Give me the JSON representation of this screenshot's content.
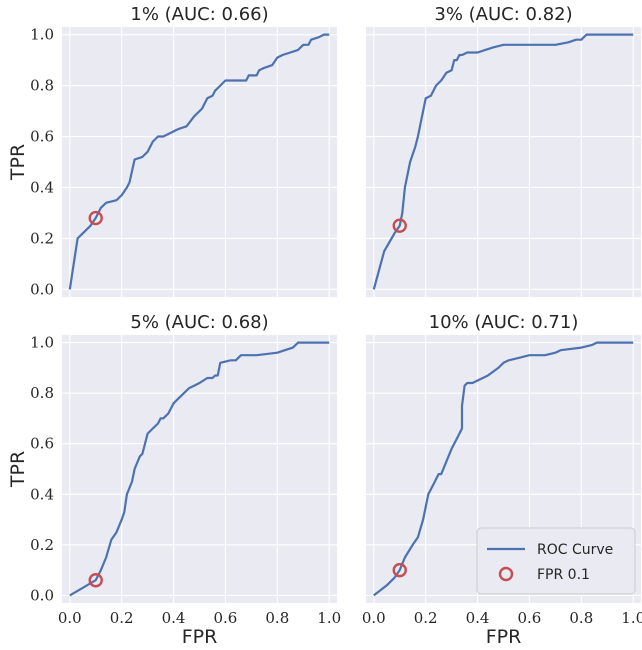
{
  "chart_data": {
    "type": "line",
    "colors": {
      "roc": "#4c72b0",
      "marker": "#c44e52"
    },
    "shared": {
      "xlabel": "FPR",
      "ylabel": "TPR",
      "xlim": [
        -0.03,
        1.03
      ],
      "ylim": [
        -0.03,
        1.03
      ],
      "ticks": [
        "0.0",
        "0.2",
        "0.4",
        "0.6",
        "0.8",
        "1.0"
      ],
      "grid": true,
      "sharex": true,
      "sharey": true
    },
    "legend": {
      "placement": "lower-right",
      "entries": [
        "ROC Curve",
        "FPR 0.1"
      ]
    },
    "panels": [
      {
        "title": "1% (AUC: 0.66)",
        "marker": [
          0.1,
          0.28
        ],
        "x": [
          0.0,
          0.03,
          0.05,
          0.08,
          0.1,
          0.12,
          0.14,
          0.18,
          0.2,
          0.22,
          0.23,
          0.25,
          0.28,
          0.3,
          0.32,
          0.34,
          0.36,
          0.38,
          0.4,
          0.42,
          0.45,
          0.48,
          0.5,
          0.51,
          0.53,
          0.55,
          0.56,
          0.58,
          0.6,
          0.63,
          0.68,
          0.69,
          0.72,
          0.73,
          0.75,
          0.78,
          0.8,
          0.82,
          0.85,
          0.88,
          0.9,
          0.92,
          0.93,
          0.96,
          0.98,
          1.0
        ],
        "y": [
          0.0,
          0.2,
          0.22,
          0.25,
          0.28,
          0.32,
          0.34,
          0.35,
          0.37,
          0.4,
          0.42,
          0.51,
          0.52,
          0.54,
          0.58,
          0.6,
          0.6,
          0.61,
          0.62,
          0.63,
          0.64,
          0.68,
          0.7,
          0.71,
          0.75,
          0.76,
          0.78,
          0.8,
          0.82,
          0.82,
          0.82,
          0.84,
          0.84,
          0.86,
          0.87,
          0.88,
          0.91,
          0.92,
          0.93,
          0.94,
          0.96,
          0.96,
          0.98,
          0.99,
          1.0,
          1.0
        ]
      },
      {
        "title": "3% (AUC: 0.82)",
        "marker": [
          0.1,
          0.25
        ],
        "x": [
          0.0,
          0.04,
          0.08,
          0.1,
          0.11,
          0.12,
          0.14,
          0.16,
          0.17,
          0.18,
          0.19,
          0.2,
          0.22,
          0.24,
          0.25,
          0.26,
          0.28,
          0.3,
          0.31,
          0.32,
          0.33,
          0.34,
          0.36,
          0.4,
          0.43,
          0.46,
          0.5,
          0.55,
          0.6,
          0.65,
          0.7,
          0.75,
          0.78,
          0.8,
          0.82,
          0.85,
          1.0
        ],
        "y": [
          0.0,
          0.15,
          0.22,
          0.25,
          0.3,
          0.4,
          0.5,
          0.56,
          0.6,
          0.65,
          0.7,
          0.75,
          0.76,
          0.8,
          0.81,
          0.82,
          0.85,
          0.86,
          0.9,
          0.9,
          0.92,
          0.92,
          0.93,
          0.93,
          0.94,
          0.95,
          0.96,
          0.96,
          0.96,
          0.96,
          0.96,
          0.97,
          0.98,
          0.98,
          1.0,
          1.0,
          1.0
        ]
      },
      {
        "title": "5% (AUC: 0.68)",
        "marker": [
          0.1,
          0.06
        ],
        "x": [
          0.0,
          0.05,
          0.1,
          0.12,
          0.14,
          0.16,
          0.18,
          0.2,
          0.21,
          0.22,
          0.24,
          0.25,
          0.27,
          0.28,
          0.3,
          0.32,
          0.34,
          0.35,
          0.36,
          0.38,
          0.4,
          0.42,
          0.44,
          0.46,
          0.48,
          0.5,
          0.53,
          0.55,
          0.56,
          0.57,
          0.58,
          0.62,
          0.64,
          0.66,
          0.72,
          0.8,
          0.86,
          0.88,
          1.0
        ],
        "y": [
          0.0,
          0.03,
          0.06,
          0.1,
          0.15,
          0.22,
          0.25,
          0.3,
          0.33,
          0.4,
          0.45,
          0.5,
          0.55,
          0.56,
          0.64,
          0.66,
          0.68,
          0.7,
          0.7,
          0.72,
          0.76,
          0.78,
          0.8,
          0.82,
          0.83,
          0.84,
          0.86,
          0.86,
          0.87,
          0.87,
          0.92,
          0.93,
          0.93,
          0.95,
          0.95,
          0.96,
          0.98,
          1.0,
          1.0
        ]
      },
      {
        "title": "10% (AUC: 0.71)",
        "marker": [
          0.1,
          0.1
        ],
        "x": [
          0.0,
          0.05,
          0.08,
          0.1,
          0.12,
          0.15,
          0.17,
          0.19,
          0.2,
          0.21,
          0.23,
          0.25,
          0.26,
          0.28,
          0.3,
          0.32,
          0.34,
          0.34,
          0.35,
          0.36,
          0.38,
          0.4,
          0.44,
          0.48,
          0.5,
          0.52,
          0.56,
          0.6,
          0.66,
          0.7,
          0.72,
          0.8,
          0.84,
          0.86,
          1.0
        ],
        "y": [
          0.0,
          0.04,
          0.07,
          0.1,
          0.15,
          0.2,
          0.23,
          0.3,
          0.35,
          0.4,
          0.44,
          0.48,
          0.48,
          0.53,
          0.58,
          0.62,
          0.66,
          0.75,
          0.83,
          0.84,
          0.84,
          0.85,
          0.87,
          0.9,
          0.92,
          0.93,
          0.94,
          0.95,
          0.95,
          0.96,
          0.97,
          0.98,
          0.99,
          1.0,
          1.0
        ]
      }
    ]
  }
}
